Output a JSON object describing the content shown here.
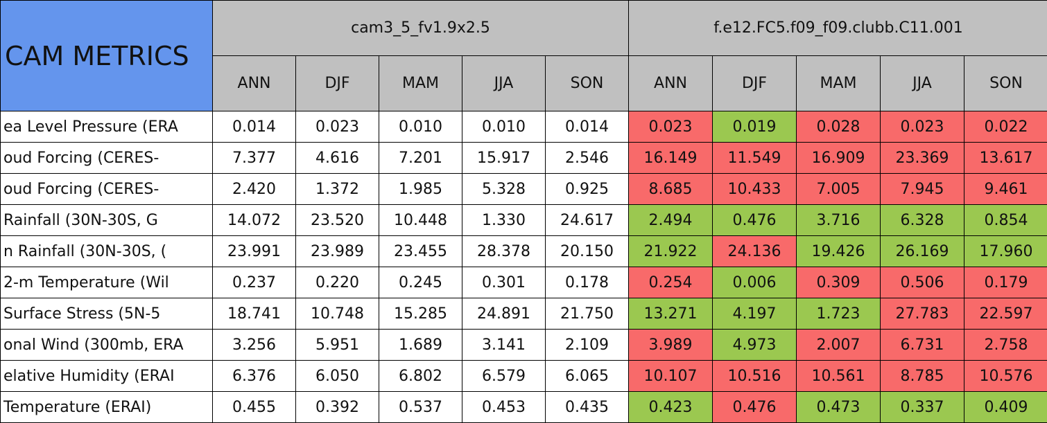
{
  "header": {
    "title": "CAM METRICS",
    "groups": [
      {
        "name": "cam3_5_fv1.9x2.5",
        "seasons": [
          "ANN",
          "DJF",
          "MAM",
          "JJA",
          "SON"
        ]
      },
      {
        "name": "f.e12.FC5.f09_f09.clubb.C11.001",
        "seasons": [
          "ANN",
          "DJF",
          "MAM",
          "JJA",
          "SON"
        ]
      }
    ],
    "title_color": "#6495ed",
    "header_color": "#c0c0c0"
  },
  "rows": [
    {
      "label": "ea Level Pressure (ERA",
      "cells": [
        "0.014",
        "0.023",
        "0.010",
        "0.010",
        "0.014",
        "0.023",
        "0.019",
        "0.028",
        "0.023",
        "0.022"
      ],
      "colors": [
        "#ffffff",
        "#ffffff",
        "#ffffff",
        "#ffffff",
        "#ffffff",
        "#f86a6a",
        "#9bc850",
        "#f86a6a",
        "#f86a6a",
        "#f86a6a"
      ]
    },
    {
      "label": "oud Forcing (CERES-",
      "cells": [
        "7.377",
        "4.616",
        "7.201",
        "15.917",
        "2.546",
        "16.149",
        "11.549",
        "16.909",
        "23.369",
        "13.617"
      ],
      "colors": [
        "#ffffff",
        "#ffffff",
        "#ffffff",
        "#ffffff",
        "#ffffff",
        "#f86a6a",
        "#f86a6a",
        "#f86a6a",
        "#f86a6a",
        "#f86a6a"
      ]
    },
    {
      "label": "oud Forcing (CERES-",
      "cells": [
        "2.420",
        "1.372",
        "1.985",
        "5.328",
        "0.925",
        "8.685",
        "10.433",
        "7.005",
        "7.945",
        "9.461"
      ],
      "colors": [
        "#ffffff",
        "#ffffff",
        "#ffffff",
        "#ffffff",
        "#ffffff",
        "#f86a6a",
        "#f86a6a",
        "#f86a6a",
        "#f86a6a",
        "#f86a6a"
      ]
    },
    {
      "label": "Rainfall (30N-30S, G",
      "cells": [
        "14.072",
        "23.520",
        "10.448",
        "1.330",
        "24.617",
        "2.494",
        "0.476",
        "3.716",
        "6.328",
        "0.854"
      ],
      "colors": [
        "#ffffff",
        "#ffffff",
        "#ffffff",
        "#ffffff",
        "#ffffff",
        "#9bc850",
        "#9bc850",
        "#9bc850",
        "#9bc850",
        "#9bc850"
      ]
    },
    {
      "label": "n Rainfall (30N-30S, (",
      "cells": [
        "23.991",
        "23.989",
        "23.455",
        "28.378",
        "20.150",
        "21.922",
        "24.136",
        "19.426",
        "26.169",
        "17.960"
      ],
      "colors": [
        "#ffffff",
        "#ffffff",
        "#ffffff",
        "#ffffff",
        "#ffffff",
        "#9bc850",
        "#f86a6a",
        "#9bc850",
        "#9bc850",
        "#9bc850"
      ]
    },
    {
      "label": "2-m Temperature (Wil",
      "cells": [
        "0.237",
        "0.220",
        "0.245",
        "0.301",
        "0.178",
        "0.254",
        "0.006",
        "0.309",
        "0.506",
        "0.179"
      ],
      "colors": [
        "#ffffff",
        "#ffffff",
        "#ffffff",
        "#ffffff",
        "#ffffff",
        "#f86a6a",
        "#9bc850",
        "#f86a6a",
        "#f86a6a",
        "#f86a6a"
      ]
    },
    {
      "label": "Surface Stress (5N-5",
      "cells": [
        "18.741",
        "10.748",
        "15.285",
        "24.891",
        "21.750",
        "13.271",
        "4.197",
        "1.723",
        "27.783",
        "22.597"
      ],
      "colors": [
        "#ffffff",
        "#ffffff",
        "#ffffff",
        "#ffffff",
        "#ffffff",
        "#9bc850",
        "#9bc850",
        "#9bc850",
        "#f86a6a",
        "#f86a6a"
      ]
    },
    {
      "label": "onal Wind (300mb, ERA",
      "cells": [
        "3.256",
        "5.951",
        "1.689",
        "3.141",
        "2.109",
        "3.989",
        "4.973",
        "2.007",
        "6.731",
        "2.758"
      ],
      "colors": [
        "#ffffff",
        "#ffffff",
        "#ffffff",
        "#ffffff",
        "#ffffff",
        "#f86a6a",
        "#9bc850",
        "#f86a6a",
        "#f86a6a",
        "#f86a6a"
      ]
    },
    {
      "label": "elative Humidity (ERAI",
      "cells": [
        "6.376",
        "6.050",
        "6.802",
        "6.579",
        "6.065",
        "10.107",
        "10.516",
        "10.561",
        "8.785",
        "10.576"
      ],
      "colors": [
        "#ffffff",
        "#ffffff",
        "#ffffff",
        "#ffffff",
        "#ffffff",
        "#f86a6a",
        "#f86a6a",
        "#f86a6a",
        "#f86a6a",
        "#f86a6a"
      ]
    },
    {
      "label": "Temperature (ERAI)",
      "cells": [
        "0.455",
        "0.392",
        "0.537",
        "0.453",
        "0.435",
        "0.423",
        "0.476",
        "0.473",
        "0.337",
        "0.409"
      ],
      "colors": [
        "#ffffff",
        "#ffffff",
        "#ffffff",
        "#ffffff",
        "#ffffff",
        "#9bc850",
        "#f86a6a",
        "#9bc850",
        "#9bc850",
        "#9bc850"
      ]
    }
  ]
}
